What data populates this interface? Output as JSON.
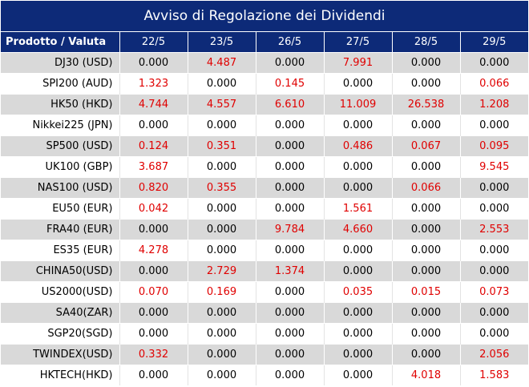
{
  "title": "Avviso di Regolazione dei Dividendi",
  "colors": {
    "header_bg": "#0d2a78",
    "nonzero_value": "#e00000",
    "zero_value": "#000000",
    "stripe": "#d9d9d9"
  },
  "table": {
    "product_header": "Prodotto / Valuta",
    "dates": [
      "22/5",
      "23/5",
      "26/5",
      "27/5",
      "28/5",
      "29/5"
    ],
    "rows": [
      {
        "product": "DJ30 (USD)",
        "values": [
          "0.000",
          "4.487",
          "0.000",
          "7.991",
          "0.000",
          "0.000"
        ]
      },
      {
        "product": "SPI200 (AUD)",
        "values": [
          "1.323",
          "0.000",
          "0.145",
          "0.000",
          "0.000",
          "0.066"
        ]
      },
      {
        "product": "HK50 (HKD)",
        "values": [
          "4.744",
          "4.557",
          "6.610",
          "11.009",
          "26.538",
          "1.208"
        ]
      },
      {
        "product": "Nikkei225 (JPN)",
        "values": [
          "0.000",
          "0.000",
          "0.000",
          "0.000",
          "0.000",
          "0.000"
        ]
      },
      {
        "product": "SP500 (USD)",
        "values": [
          "0.124",
          "0.351",
          "0.000",
          "0.486",
          "0.067",
          "0.095"
        ]
      },
      {
        "product": "UK100 (GBP)",
        "values": [
          "3.687",
          "0.000",
          "0.000",
          "0.000",
          "0.000",
          "9.545"
        ]
      },
      {
        "product": "NAS100 (USD)",
        "values": [
          "0.820",
          "0.355",
          "0.000",
          "0.000",
          "0.066",
          "0.000"
        ]
      },
      {
        "product": "EU50 (EUR)",
        "values": [
          "0.042",
          "0.000",
          "0.000",
          "1.561",
          "0.000",
          "0.000"
        ]
      },
      {
        "product": "FRA40 (EUR)",
        "values": [
          "0.000",
          "0.000",
          "9.784",
          "4.660",
          "0.000",
          "2.553"
        ]
      },
      {
        "product": "ES35 (EUR)",
        "values": [
          "4.278",
          "0.000",
          "0.000",
          "0.000",
          "0.000",
          "0.000"
        ]
      },
      {
        "product": "CHINA50(USD)",
        "values": [
          "0.000",
          "2.729",
          "1.374",
          "0.000",
          "0.000",
          "0.000"
        ]
      },
      {
        "product": "US2000(USD)",
        "values": [
          "0.070",
          "0.169",
          "0.000",
          "0.035",
          "0.015",
          "0.073"
        ]
      },
      {
        "product": "SA40(ZAR)",
        "values": [
          "0.000",
          "0.000",
          "0.000",
          "0.000",
          "0.000",
          "0.000"
        ]
      },
      {
        "product": "SGP20(SGD)",
        "values": [
          "0.000",
          "0.000",
          "0.000",
          "0.000",
          "0.000",
          "0.000"
        ]
      },
      {
        "product": "TWINDEX(USD)",
        "values": [
          "0.332",
          "0.000",
          "0.000",
          "0.000",
          "0.000",
          "2.056"
        ]
      },
      {
        "product": "HKTECH(HKD)",
        "values": [
          "0.000",
          "0.000",
          "0.000",
          "0.000",
          "4.018",
          "1.583"
        ]
      }
    ]
  }
}
